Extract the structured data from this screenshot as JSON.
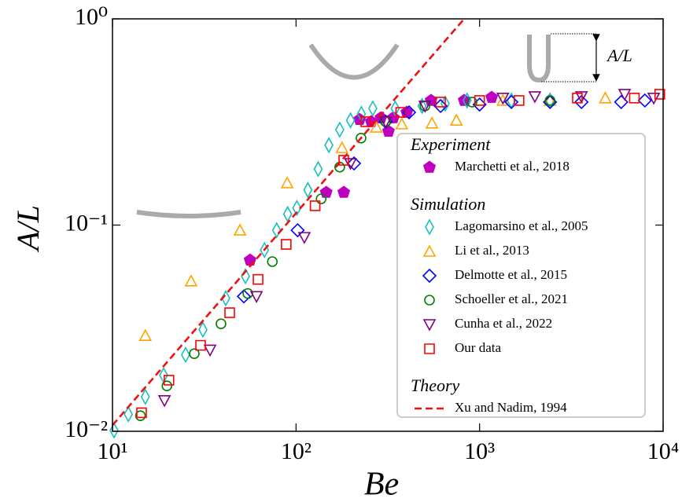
{
  "chart_data": {
    "type": "scatter",
    "xlabel": "Be",
    "ylabel": "A/L",
    "annotation": "A/L",
    "xscale": "log",
    "yscale": "log",
    "xlim": [
      10,
      10000
    ],
    "ylim": [
      0.01,
      1
    ],
    "xticks": [
      {
        "value": 10,
        "label": "10¹"
      },
      {
        "value": 100,
        "label": "10²"
      },
      {
        "value": 1000,
        "label": "10³"
      },
      {
        "value": 10000,
        "label": "10⁴"
      }
    ],
    "yticks": [
      {
        "value": 0.01,
        "label": "10⁻²"
      },
      {
        "value": 0.1,
        "label": "10⁻¹"
      },
      {
        "value": 1,
        "label": "10⁰"
      }
    ],
    "legend_loc": "center right",
    "groups": [
      {
        "title": "Experiment",
        "series": [
          {
            "name": "Marchetti et al., 2018",
            "color": "#bf00bf",
            "marker": "pentagon",
            "x": [
              56.2,
              146,
              182,
              222,
              257,
              290,
              319,
              339,
              401,
              544,
              824,
              1164
            ],
            "values": [
              0.0676,
              0.144,
              0.144,
              0.325,
              0.317,
              0.331,
              0.285,
              0.331,
              0.352,
              0.402,
              0.402,
              0.416
            ]
          }
        ]
      },
      {
        "title": "Simulation",
        "series": [
          {
            "name": "Lagomarsino et al., 2005",
            "color": "#17bfbf",
            "marker": "diamond",
            "x": [
              10.2,
              12.2,
              15.1,
              19.0,
              25.0,
              31.1,
              41.4,
              53.0,
              67.3,
              78.4,
              90,
              101,
              116,
              132,
              151,
              173,
              198,
              227,
              262,
              347,
              486,
              650,
              855,
              1490,
              2420
            ],
            "values": [
              0.0101,
              0.0121,
              0.0147,
              0.0187,
              0.0235,
              0.0311,
              0.0442,
              0.0565,
              0.0757,
              0.0944,
              0.113,
              0.121,
              0.148,
              0.187,
              0.244,
              0.29,
              0.322,
              0.346,
              0.368,
              0.368,
              0.378,
              0.388,
              0.402,
              0.402,
              0.402
            ]
          },
          {
            "name": "Li et al., 2013",
            "color": "#ffa500",
            "marker": "triangle-up",
            "x": [
              15.1,
              26.8,
              49.5,
              89.5,
              178,
              274,
              377,
              550,
              748,
              1340,
              2420,
              4840
            ],
            "values": [
              0.0291,
              0.0535,
              0.0944,
              0.16,
              0.237,
              0.298,
              0.309,
              0.312,
              0.322,
              0.402,
              0.402,
              0.413
            ]
          },
          {
            "name": "Delmotte et al., 2015",
            "color": "#0000ff",
            "marker": "diamond-wide",
            "x": [
              52.0,
              102,
              207,
              308,
              413,
              613,
              1000,
              1490,
              2420,
              3590,
              5910,
              7950
            ],
            "values": [
              0.0451,
              0.0944,
              0.199,
              0.317,
              0.352,
              0.378,
              0.384,
              0.395,
              0.395,
              0.395,
              0.395,
              0.402
            ]
          },
          {
            "name": "Schoeller et al., 2021",
            "color": "#008000",
            "marker": "circle",
            "x": [
              14.2,
              19.8,
              27.9,
              39.0,
              54.6,
              74.3,
              137,
              173,
              226,
              308,
              504,
              910,
              2420
            ],
            "values": [
              0.0119,
              0.0166,
              0.0238,
              0.0332,
              0.0466,
              0.0665,
              0.134,
              0.191,
              0.264,
              0.317,
              0.378,
              0.395,
              0.402
            ]
          },
          {
            "name": "Cunha et al., 2022",
            "color": "#800080",
            "marker": "triangle-down",
            "x": [
              19.2,
              34.0,
              60.9,
              111,
              198,
              308,
              504,
              1340,
              2000,
              3590,
              6170,
              8890
            ],
            "values": [
              0.0141,
              0.0248,
              0.0451,
              0.0872,
              0.199,
              0.317,
              0.378,
              0.413,
              0.42,
              0.42,
              0.431,
              0.413
            ]
          },
          {
            "name": "Our data",
            "color": "#ff0000",
            "marker": "square",
            "x": [
              14.4,
              20.3,
              30.2,
              43.5,
              62.1,
              88.4,
              127,
              182,
              240,
              372,
              613,
              1000,
              1640,
              3410,
              6970,
              9590
            ],
            "values": [
              0.0123,
              0.0177,
              0.0261,
              0.0376,
              0.0545,
              0.0806,
              0.124,
              0.206,
              0.317,
              0.352,
              0.395,
              0.402,
              0.402,
              0.413,
              0.413,
              0.431
            ]
          }
        ]
      },
      {
        "title": "Theory",
        "series": [
          {
            "name": "Xu and Nadim, 1994",
            "color": "#ee1111",
            "marker": "dashed-line",
            "x": [
              10,
              824
            ],
            "values": [
              0.0107,
              1
            ]
          }
        ]
      }
    ]
  }
}
